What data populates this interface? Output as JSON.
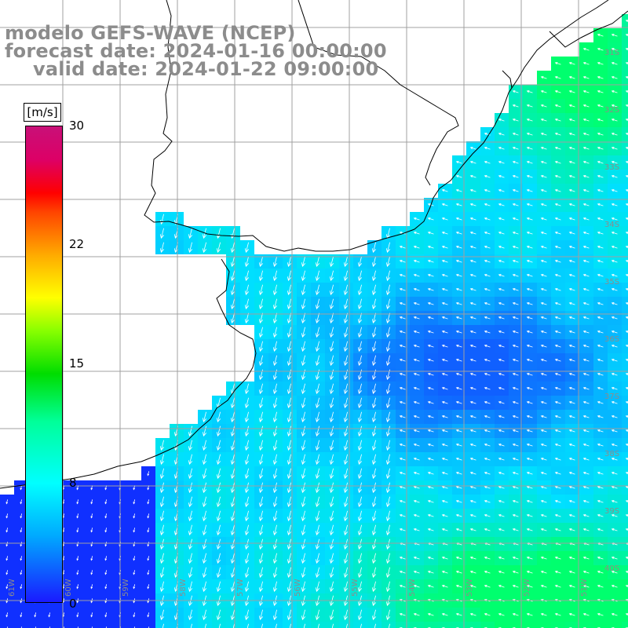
{
  "title": {
    "line1": "modelo GEFS-WAVE (NCEP)",
    "line2": "forecast date: 2024-01-16 00:00:00",
    "line3": "valid date: 2024-01-22 09:00:00"
  },
  "colorbar": {
    "unit": "[m/s]",
    "ticks": [
      "30",
      "22",
      "15",
      "8",
      "0"
    ],
    "min": 0,
    "max": 30
  },
  "grid": {
    "lat_labels": [
      "31S",
      "32S",
      "33S",
      "34S",
      "35S",
      "36S",
      "37S",
      "38S",
      "39S",
      "40S"
    ],
    "lon_labels": [
      "61W",
      "60W",
      "59W",
      "58W",
      "57W",
      "56W",
      "55W",
      "54W",
      "53W",
      "52W",
      "51W"
    ]
  },
  "colors": {
    "land": "#ffffff",
    "coast": "#000000",
    "grid": "#a0a0a0",
    "vectors": "#ffffff",
    "title": "#8c8c8c"
  }
}
